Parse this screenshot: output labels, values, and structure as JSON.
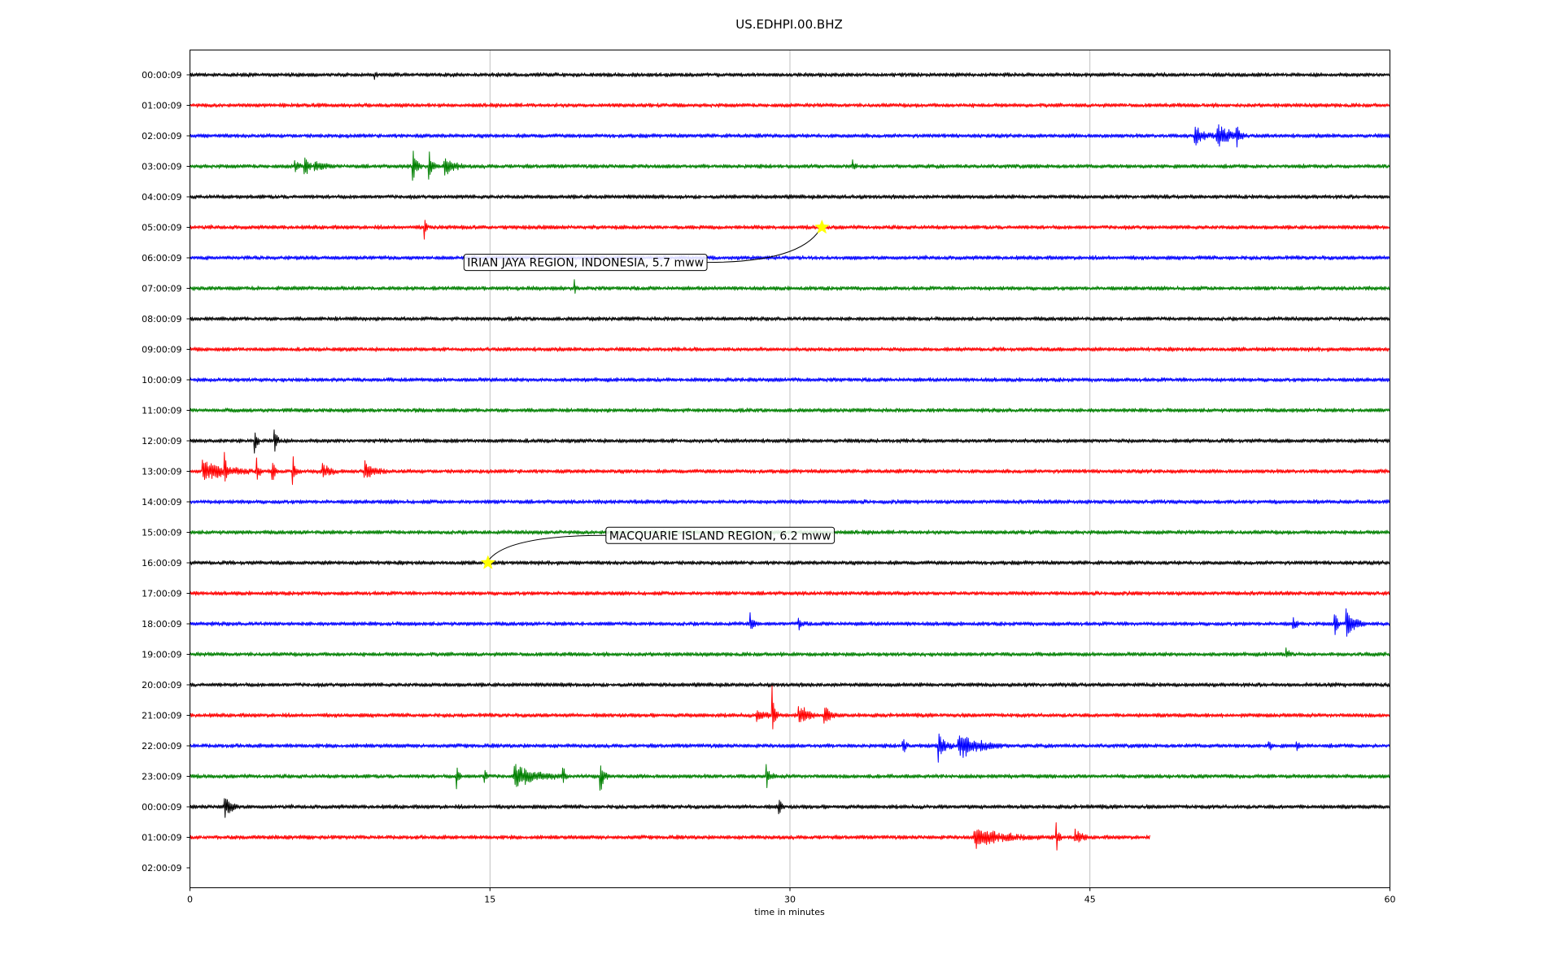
{
  "chart_data": {
    "type": "line",
    "title": "US.EDHPI.00.BHZ",
    "xlabel": "time in minutes",
    "ylabel": "",
    "xlim": [
      0,
      60
    ],
    "x_ticks": [
      0,
      15,
      30,
      45,
      60
    ],
    "x_tick_labels": [
      "0",
      "15",
      "30",
      "45",
      "60"
    ],
    "grid": "vertical lines at x ticks",
    "row_labels": [
      "00:00:09",
      "01:00:09",
      "02:00:09",
      "03:00:09",
      "04:00:09",
      "05:00:09",
      "06:00:09",
      "07:00:09",
      "08:00:09",
      "09:00:09",
      "10:00:09",
      "11:00:09",
      "12:00:09",
      "13:00:09",
      "14:00:09",
      "15:00:09",
      "16:00:09",
      "17:00:09",
      "18:00:09",
      "19:00:09",
      "20:00:09",
      "21:00:09",
      "22:00:09",
      "23:00:09",
      "00:00:09",
      "01:00:09",
      "02:00:09"
    ],
    "row_colors": [
      "#000000",
      "#ff0000",
      "#0000ff",
      "#008000"
    ],
    "traces": [
      {
        "row": 0,
        "end": 60,
        "events": [
          [
            9.2,
            0.3,
            0.8
          ]
        ]
      },
      {
        "row": 1,
        "end": 60,
        "events": []
      },
      {
        "row": 2,
        "end": 60,
        "events": [
          [
            50.2,
            1.0,
            1.5
          ],
          [
            51.3,
            1.5,
            2.2
          ],
          [
            52.3,
            0.5,
            2.0
          ]
        ]
      },
      {
        "row": 3,
        "end": 60,
        "events": [
          [
            5.2,
            0.5,
            1.2
          ],
          [
            5.7,
            0.4,
            2.2
          ],
          [
            6.2,
            0.8,
            1.2
          ],
          [
            11.1,
            0.5,
            2.5
          ],
          [
            11.9,
            0.4,
            3.5
          ],
          [
            12.7,
            1.0,
            1.5
          ],
          [
            33.1,
            0.3,
            1.0
          ]
        ]
      },
      {
        "row": 4,
        "end": 60,
        "events": []
      },
      {
        "row": 5,
        "end": 60,
        "events": [
          [
            11.7,
            0.2,
            1.8
          ]
        ]
      },
      {
        "row": 6,
        "end": 60,
        "events": []
      },
      {
        "row": 7,
        "end": 60,
        "events": [
          [
            19.2,
            0.2,
            1.2
          ]
        ]
      },
      {
        "row": 8,
        "end": 60,
        "events": []
      },
      {
        "row": 9,
        "end": 60,
        "events": []
      },
      {
        "row": 10,
        "end": 60,
        "events": []
      },
      {
        "row": 11,
        "end": 60,
        "events": []
      },
      {
        "row": 12,
        "end": 60,
        "events": [
          [
            3.2,
            0.3,
            4.0
          ],
          [
            4.2,
            0.3,
            2.5
          ]
        ]
      },
      {
        "row": 13,
        "end": 60,
        "events": [
          [
            0.6,
            2.8,
            1.5
          ],
          [
            1.7,
            0.3,
            3.5
          ],
          [
            3.3,
            0.3,
            2.5
          ],
          [
            4.1,
            0.3,
            2.5
          ],
          [
            5.1,
            0.3,
            3.5
          ],
          [
            6.6,
            0.8,
            1.2
          ],
          [
            8.7,
            1.2,
            1.2
          ]
        ]
      },
      {
        "row": 14,
        "end": 60,
        "events": []
      },
      {
        "row": 15,
        "end": 60,
        "events": []
      },
      {
        "row": 16,
        "end": 60,
        "events": []
      },
      {
        "row": 17,
        "end": 60,
        "events": []
      },
      {
        "row": 18,
        "end": 60,
        "events": [
          [
            28.0,
            0.4,
            1.2
          ],
          [
            30.4,
            0.4,
            1.0
          ],
          [
            55.1,
            0.4,
            1.2
          ],
          [
            57.2,
            0.3,
            3.0
          ],
          [
            57.8,
            1.0,
            2.0
          ]
        ]
      },
      {
        "row": 19,
        "end": 60,
        "events": [
          [
            54.8,
            0.3,
            1.0
          ]
        ]
      },
      {
        "row": 20,
        "end": 60,
        "events": []
      },
      {
        "row": 21,
        "end": 60,
        "events": [
          [
            28.3,
            0.7,
            1.5
          ],
          [
            29.1,
            0.3,
            4.0
          ],
          [
            30.4,
            1.0,
            2.0
          ],
          [
            31.7,
            0.6,
            1.8
          ]
        ]
      },
      {
        "row": 22,
        "end": 60,
        "events": [
          [
            35.6,
            0.4,
            1.5
          ],
          [
            37.4,
            0.8,
            2.0
          ],
          [
            38.4,
            2.3,
            1.8
          ],
          [
            53.9,
            0.3,
            1.3
          ],
          [
            55.3,
            0.3,
            1.0
          ]
        ]
      },
      {
        "row": 23,
        "end": 60,
        "events": [
          [
            13.3,
            0.3,
            1.8
          ],
          [
            14.7,
            0.3,
            1.2
          ],
          [
            16.2,
            2.5,
            1.6
          ],
          [
            18.6,
            0.3,
            2.3
          ],
          [
            20.5,
            0.4,
            2.3
          ],
          [
            28.8,
            0.4,
            1.8
          ]
        ]
      },
      {
        "row": 24,
        "end": 60,
        "events": [
          [
            1.7,
            0.8,
            1.5
          ],
          [
            29.4,
            0.3,
            2.5
          ]
        ]
      },
      {
        "row": 25,
        "end": 48,
        "events": [
          [
            39.2,
            3.5,
            1.2
          ],
          [
            43.3,
            0.3,
            2.2
          ],
          [
            44.2,
            0.8,
            1.5
          ]
        ]
      }
    ],
    "annotations": [
      {
        "text": "IRIAN JAYA REGION, INDONESIA, 5.7 mww",
        "row": 5,
        "x": 31.6,
        "label_row": 6.15,
        "label_x": 13.7
      },
      {
        "text": "MACQUARIE ISLAND REGION, 6.2 mww",
        "row": 16,
        "x": 14.9,
        "label_row": 15.1,
        "label_x": 20.8
      }
    ],
    "marker": {
      "shape": "star",
      "color": "#ffff00"
    }
  }
}
